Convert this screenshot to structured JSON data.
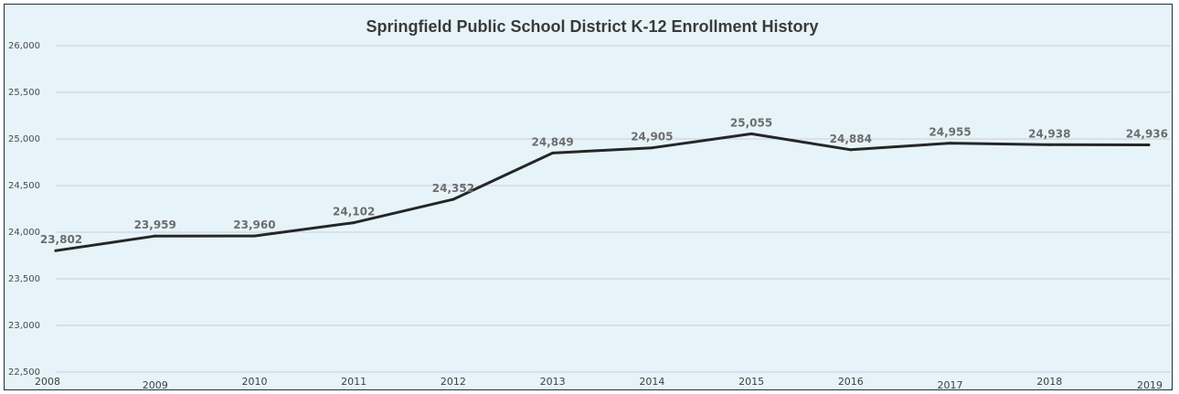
{
  "chart_data": {
    "type": "line",
    "title": "Springfield Public School District K-12 Enrollment History",
    "xlabel": "",
    "ylabel": "",
    "x": [
      "2008",
      "2009",
      "2010",
      "2011",
      "2012",
      "2013",
      "2014",
      "2015",
      "2016",
      "2017",
      "2018",
      "2019"
    ],
    "series": [
      {
        "values": [
          23802,
          23959,
          23960,
          24102,
          24352,
          24849,
          24905,
          25055,
          24884,
          24955,
          24938,
          24936
        ],
        "labels": [
          "23,802",
          "23,959",
          "23,960",
          "24,102",
          "24,352",
          "24,849",
          "24,905",
          "25,055",
          "24,884",
          "24,955",
          "24,938",
          "24,936"
        ],
        "color": "#262626"
      }
    ],
    "ylim": [
      22500,
      26000
    ],
    "yticks": [
      22500,
      23000,
      23500,
      24000,
      24500,
      25000,
      25500,
      26000
    ],
    "ytick_labels": [
      "22,500",
      "23,000",
      "23,500",
      "24,000",
      "24,500",
      "25,000",
      "25,500",
      "26,000"
    ],
    "grid": true,
    "legend": "none",
    "background_color": "#e6f4fa",
    "gridline_color": "#c8cbdc"
  }
}
